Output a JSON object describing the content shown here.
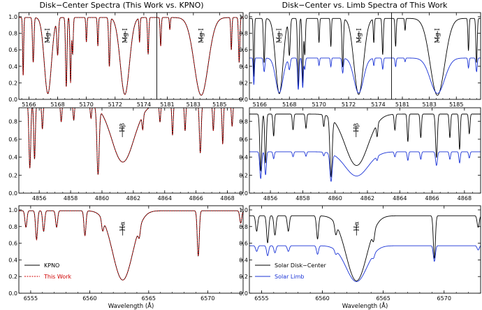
{
  "figure": {
    "title_left": "Disk−Center Spectra (This Work vs. KPNO)",
    "title_right": "Disk−Center vs. Limb Spectra of This Work",
    "xlabel": "Wavelength (Å)"
  },
  "colors": {
    "kpno": "#000000",
    "this_work": "#d00000",
    "disk_center": "#000000",
    "limb": "#1a33d6"
  },
  "chart_data": [
    {
      "type": "line",
      "panel": "mg-left",
      "title": "Disk−Center Spectra (This Work vs. KPNO)",
      "ylim": [
        0,
        1.05
      ],
      "yticks": [
        "0.0",
        "0.2",
        "0.4",
        "0.6",
        "0.8",
        "1.0"
      ],
      "segments": [
        {
          "xlim": [
            5165.3,
            5174.9
          ],
          "xticks": [
            5166,
            5168,
            5170,
            5172,
            5174
          ]
        },
        {
          "xlim": [
            5180.2,
            5186.8
          ],
          "xticks": [
            5181,
            5183,
            5185
          ]
        }
      ],
      "annotations": [
        {
          "text": "Mg I",
          "x": 5167.3,
          "segment": 0
        },
        {
          "text": "Mg I",
          "x": 5172.7,
          "segment": 0
        },
        {
          "text": "Mg I",
          "x": 5183.6,
          "segment": 1
        }
      ],
      "series": [
        {
          "name": "KPNO",
          "style": "solid",
          "color": "#000000"
        },
        {
          "name": "This Work",
          "style": "dashed",
          "color": "#d00000"
        }
      ],
      "lines": [
        {
          "seg": 0,
          "c": 5165.6,
          "d": 0.72,
          "w": 0.05
        },
        {
          "seg": 0,
          "c": 5166.3,
          "d": 0.55,
          "w": 0.07
        },
        {
          "seg": 0,
          "c": 5167.32,
          "d": 0.93,
          "w": 0.35
        },
        {
          "seg": 0,
          "c": 5168.0,
          "d": 0.45,
          "w": 0.08
        },
        {
          "seg": 0,
          "c": 5168.6,
          "d": 0.85,
          "w": 0.07
        },
        {
          "seg": 0,
          "c": 5168.9,
          "d": 0.8,
          "w": 0.06
        },
        {
          "seg": 0,
          "c": 5169.04,
          "d": 0.45,
          "w": 0.06
        },
        {
          "seg": 0,
          "c": 5170.0,
          "d": 0.3,
          "w": 0.05
        },
        {
          "seg": 0,
          "c": 5170.8,
          "d": 0.35,
          "w": 0.05
        },
        {
          "seg": 0,
          "c": 5171.6,
          "d": 0.6,
          "w": 0.07
        },
        {
          "seg": 0,
          "c": 5172.68,
          "d": 0.94,
          "w": 0.45
        },
        {
          "seg": 0,
          "c": 5173.7,
          "d": 0.3,
          "w": 0.05
        },
        {
          "seg": 0,
          "c": 5174.3,
          "d": 0.45,
          "w": 0.06
        },
        {
          "seg": 1,
          "c": 5180.5,
          "d": 0.35,
          "w": 0.06
        },
        {
          "seg": 1,
          "c": 5181.2,
          "d": 0.15,
          "w": 0.05
        },
        {
          "seg": 1,
          "c": 5183.6,
          "d": 0.95,
          "w": 0.75
        },
        {
          "seg": 1,
          "c": 5185.9,
          "d": 0.4,
          "w": 0.06
        },
        {
          "seg": 1,
          "c": 5186.5,
          "d": 0.55,
          "w": 0.07
        }
      ]
    },
    {
      "type": "line",
      "panel": "mg-right",
      "title": "Disk−Center vs. Limb Spectra of This Work",
      "ylim": [
        0,
        1.05
      ],
      "yticks": [
        "0.0",
        "0.2",
        "0.4",
        "0.6",
        "0.8",
        "1.0"
      ],
      "segments": [
        {
          "xlim": [
            5165.3,
            5174.9
          ],
          "xticks": [
            5166,
            5168,
            5170,
            5172,
            5174
          ]
        },
        {
          "xlim": [
            5180.2,
            5186.8
          ],
          "xticks": [
            5181,
            5183,
            5185
          ]
        }
      ],
      "annotations": [
        {
          "text": "Mg I",
          "x": 5167.3,
          "segment": 0
        },
        {
          "text": "Mg I",
          "x": 5172.7,
          "segment": 0
        },
        {
          "text": "Mg I",
          "x": 5183.6,
          "segment": 1
        }
      ],
      "series": [
        {
          "name": "Solar Disk−Center",
          "continuum": 0.98,
          "color": "#000000"
        },
        {
          "name": "Solar Limb",
          "continuum": 0.5,
          "color": "#1a33d6"
        }
      ]
    },
    {
      "type": "line",
      "panel": "hb-left",
      "ylim": [
        0,
        0.95
      ],
      "yticks": [
        "0.0",
        "0.2",
        "0.4",
        "0.6",
        "0.8"
      ],
      "segments": [
        {
          "xlim": [
            4854.7,
            4869.0
          ],
          "xticks": [
            4856,
            4858,
            4860,
            4862,
            4864,
            4866,
            4868
          ]
        }
      ],
      "annotations": [
        {
          "text": "Hβ",
          "x": 4861.3,
          "segment": 0
        }
      ],
      "series": [
        {
          "name": "KPNO",
          "style": "solid",
          "color": "#000000"
        },
        {
          "name": "This Work",
          "style": "dashed",
          "color": "#d00000"
        }
      ],
      "lines": [
        {
          "seg": 0,
          "c": 4855.4,
          "d": 0.72,
          "w": 0.08
        },
        {
          "seg": 0,
          "c": 4855.7,
          "d": 0.62,
          "w": 0.07
        },
        {
          "seg": 0,
          "c": 4856.2,
          "d": 0.28,
          "w": 0.06
        },
        {
          "seg": 0,
          "c": 4857.4,
          "d": 0.2,
          "w": 0.06
        },
        {
          "seg": 0,
          "c": 4858.2,
          "d": 0.18,
          "w": 0.06
        },
        {
          "seg": 0,
          "c": 4859.3,
          "d": 0.15,
          "w": 0.06
        },
        {
          "seg": 0,
          "c": 4859.75,
          "d": 0.78,
          "w": 0.1
        },
        {
          "seg": 0,
          "c": 4861.33,
          "d": 0.65,
          "w": 1.0
        },
        {
          "seg": 0,
          "c": 4862.6,
          "d": 0.18,
          "w": 0.06
        },
        {
          "seg": 0,
          "c": 4863.7,
          "d": 0.2,
          "w": 0.06
        },
        {
          "seg": 0,
          "c": 4864.5,
          "d": 0.35,
          "w": 0.06
        },
        {
          "seg": 0,
          "c": 4865.3,
          "d": 0.3,
          "w": 0.06
        },
        {
          "seg": 0,
          "c": 4866.27,
          "d": 0.55,
          "w": 0.08
        },
        {
          "seg": 0,
          "c": 4867.1,
          "d": 0.3,
          "w": 0.06
        },
        {
          "seg": 0,
          "c": 4867.7,
          "d": 0.45,
          "w": 0.06
        },
        {
          "seg": 0,
          "c": 4868.3,
          "d": 0.25,
          "w": 0.06
        }
      ]
    },
    {
      "type": "line",
      "panel": "hb-right",
      "ylim": [
        0,
        0.95
      ],
      "yticks": [
        "0.0",
        "0.2",
        "0.4",
        "0.6",
        "0.8"
      ],
      "segments": [
        {
          "xlim": [
            4854.7,
            4869.0
          ],
          "xticks": [
            4856,
            4858,
            4860,
            4862,
            4864,
            4866,
            4868
          ]
        }
      ],
      "annotations": [
        {
          "text": "Hβ",
          "x": 4861.3,
          "segment": 0
        }
      ],
      "series": [
        {
          "name": "Solar Disk−Center",
          "continuum": 0.88,
          "color": "#000000"
        },
        {
          "name": "Solar Limb",
          "continuum": 0.46,
          "color": "#1a33d6"
        }
      ]
    },
    {
      "type": "line",
      "panel": "ha-left",
      "xlabel": "Wavelength (Å)",
      "ylim": [
        0,
        1.05
      ],
      "yticks": [
        "0.0",
        "0.2",
        "0.4",
        "0.6",
        "0.8",
        "1.0"
      ],
      "segments": [
        {
          "xlim": [
            6554.0,
            6573.0
          ],
          "xticks": [
            6555,
            6560,
            6565,
            6570
          ]
        }
      ],
      "annotations": [
        {
          "text": "Hα",
          "x": 6562.8,
          "segment": 0
        }
      ],
      "legend": {
        "position": "bottom-left"
      },
      "series": [
        {
          "name": "KPNO",
          "style": "solid",
          "color": "#000000"
        },
        {
          "name": "This Work",
          "style": "dashed",
          "color": "#d00000"
        }
      ],
      "lines": [
        {
          "seg": 0,
          "c": 6554.6,
          "d": 0.2,
          "w": 0.12
        },
        {
          "seg": 0,
          "c": 6555.5,
          "d": 0.35,
          "w": 0.12
        },
        {
          "seg": 0,
          "c": 6556.1,
          "d": 0.25,
          "w": 0.12
        },
        {
          "seg": 0,
          "c": 6557.2,
          "d": 0.2,
          "w": 0.12
        },
        {
          "seg": 0,
          "c": 6559.6,
          "d": 0.3,
          "w": 0.12
        },
        {
          "seg": 0,
          "c": 6561.1,
          "d": 0.15,
          "w": 0.12
        },
        {
          "seg": 0,
          "c": 6562.8,
          "d": 0.84,
          "w": 1.2
        },
        {
          "seg": 0,
          "c": 6564.2,
          "d": 0.15,
          "w": 0.12
        },
        {
          "seg": 0,
          "c": 6569.2,
          "d": 0.55,
          "w": 0.12
        },
        {
          "seg": 0,
          "c": 6572.8,
          "d": 0.15,
          "w": 0.12
        }
      ]
    },
    {
      "type": "line",
      "panel": "ha-right",
      "xlabel": "Wavelength (Å)",
      "ylim": [
        0,
        1.05
      ],
      "yticks": [
        "0.0",
        "0.2",
        "0.4",
        "0.6",
        "0.8",
        "1.0"
      ],
      "segments": [
        {
          "xlim": [
            6554.0,
            6573.0
          ],
          "xticks": [
            6555,
            6560,
            6565,
            6570
          ]
        }
      ],
      "annotations": [
        {
          "text": "Hα",
          "x": 6562.8,
          "segment": 0
        }
      ],
      "legend": {
        "position": "bottom-left"
      },
      "series": [
        {
          "name": "Solar Disk−Center",
          "continuum": 0.93,
          "color": "#000000"
        },
        {
          "name": "Solar Limb",
          "continuum": 0.57,
          "color": "#1a33d6"
        }
      ]
    }
  ]
}
